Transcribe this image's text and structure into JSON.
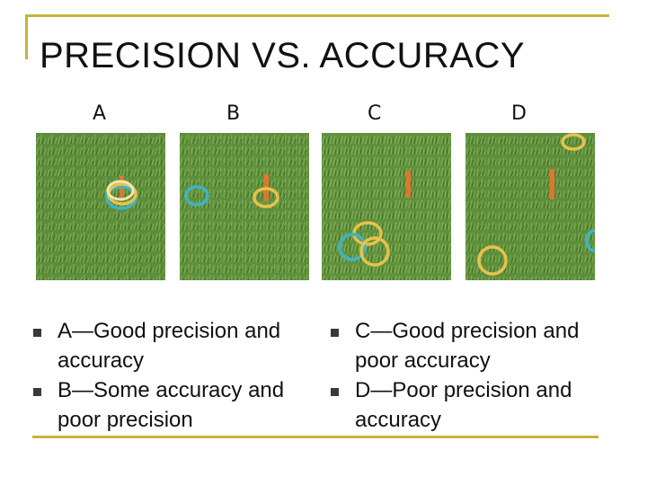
{
  "slide": {
    "title": "PRECISION VS. ACCURACY",
    "columns": [
      {
        "label": "A"
      },
      {
        "label": "B"
      },
      {
        "label": "C"
      },
      {
        "label": "D"
      }
    ],
    "bullets_left": [
      {
        "text": "A—Good precision and accuracy"
      },
      {
        "text": "B—Some accuracy and poor precision"
      }
    ],
    "bullets_right": [
      {
        "text": "C—Good precision and poor accuracy"
      },
      {
        "text": "D—Poor precision and accuracy"
      }
    ],
    "colors": {
      "accent": "#c8b23c",
      "grass": "#5f8f3a",
      "ring_yellow": "#e8c24a",
      "ring_teal": "#3fb3c6",
      "stake": "#e0762d"
    }
  }
}
